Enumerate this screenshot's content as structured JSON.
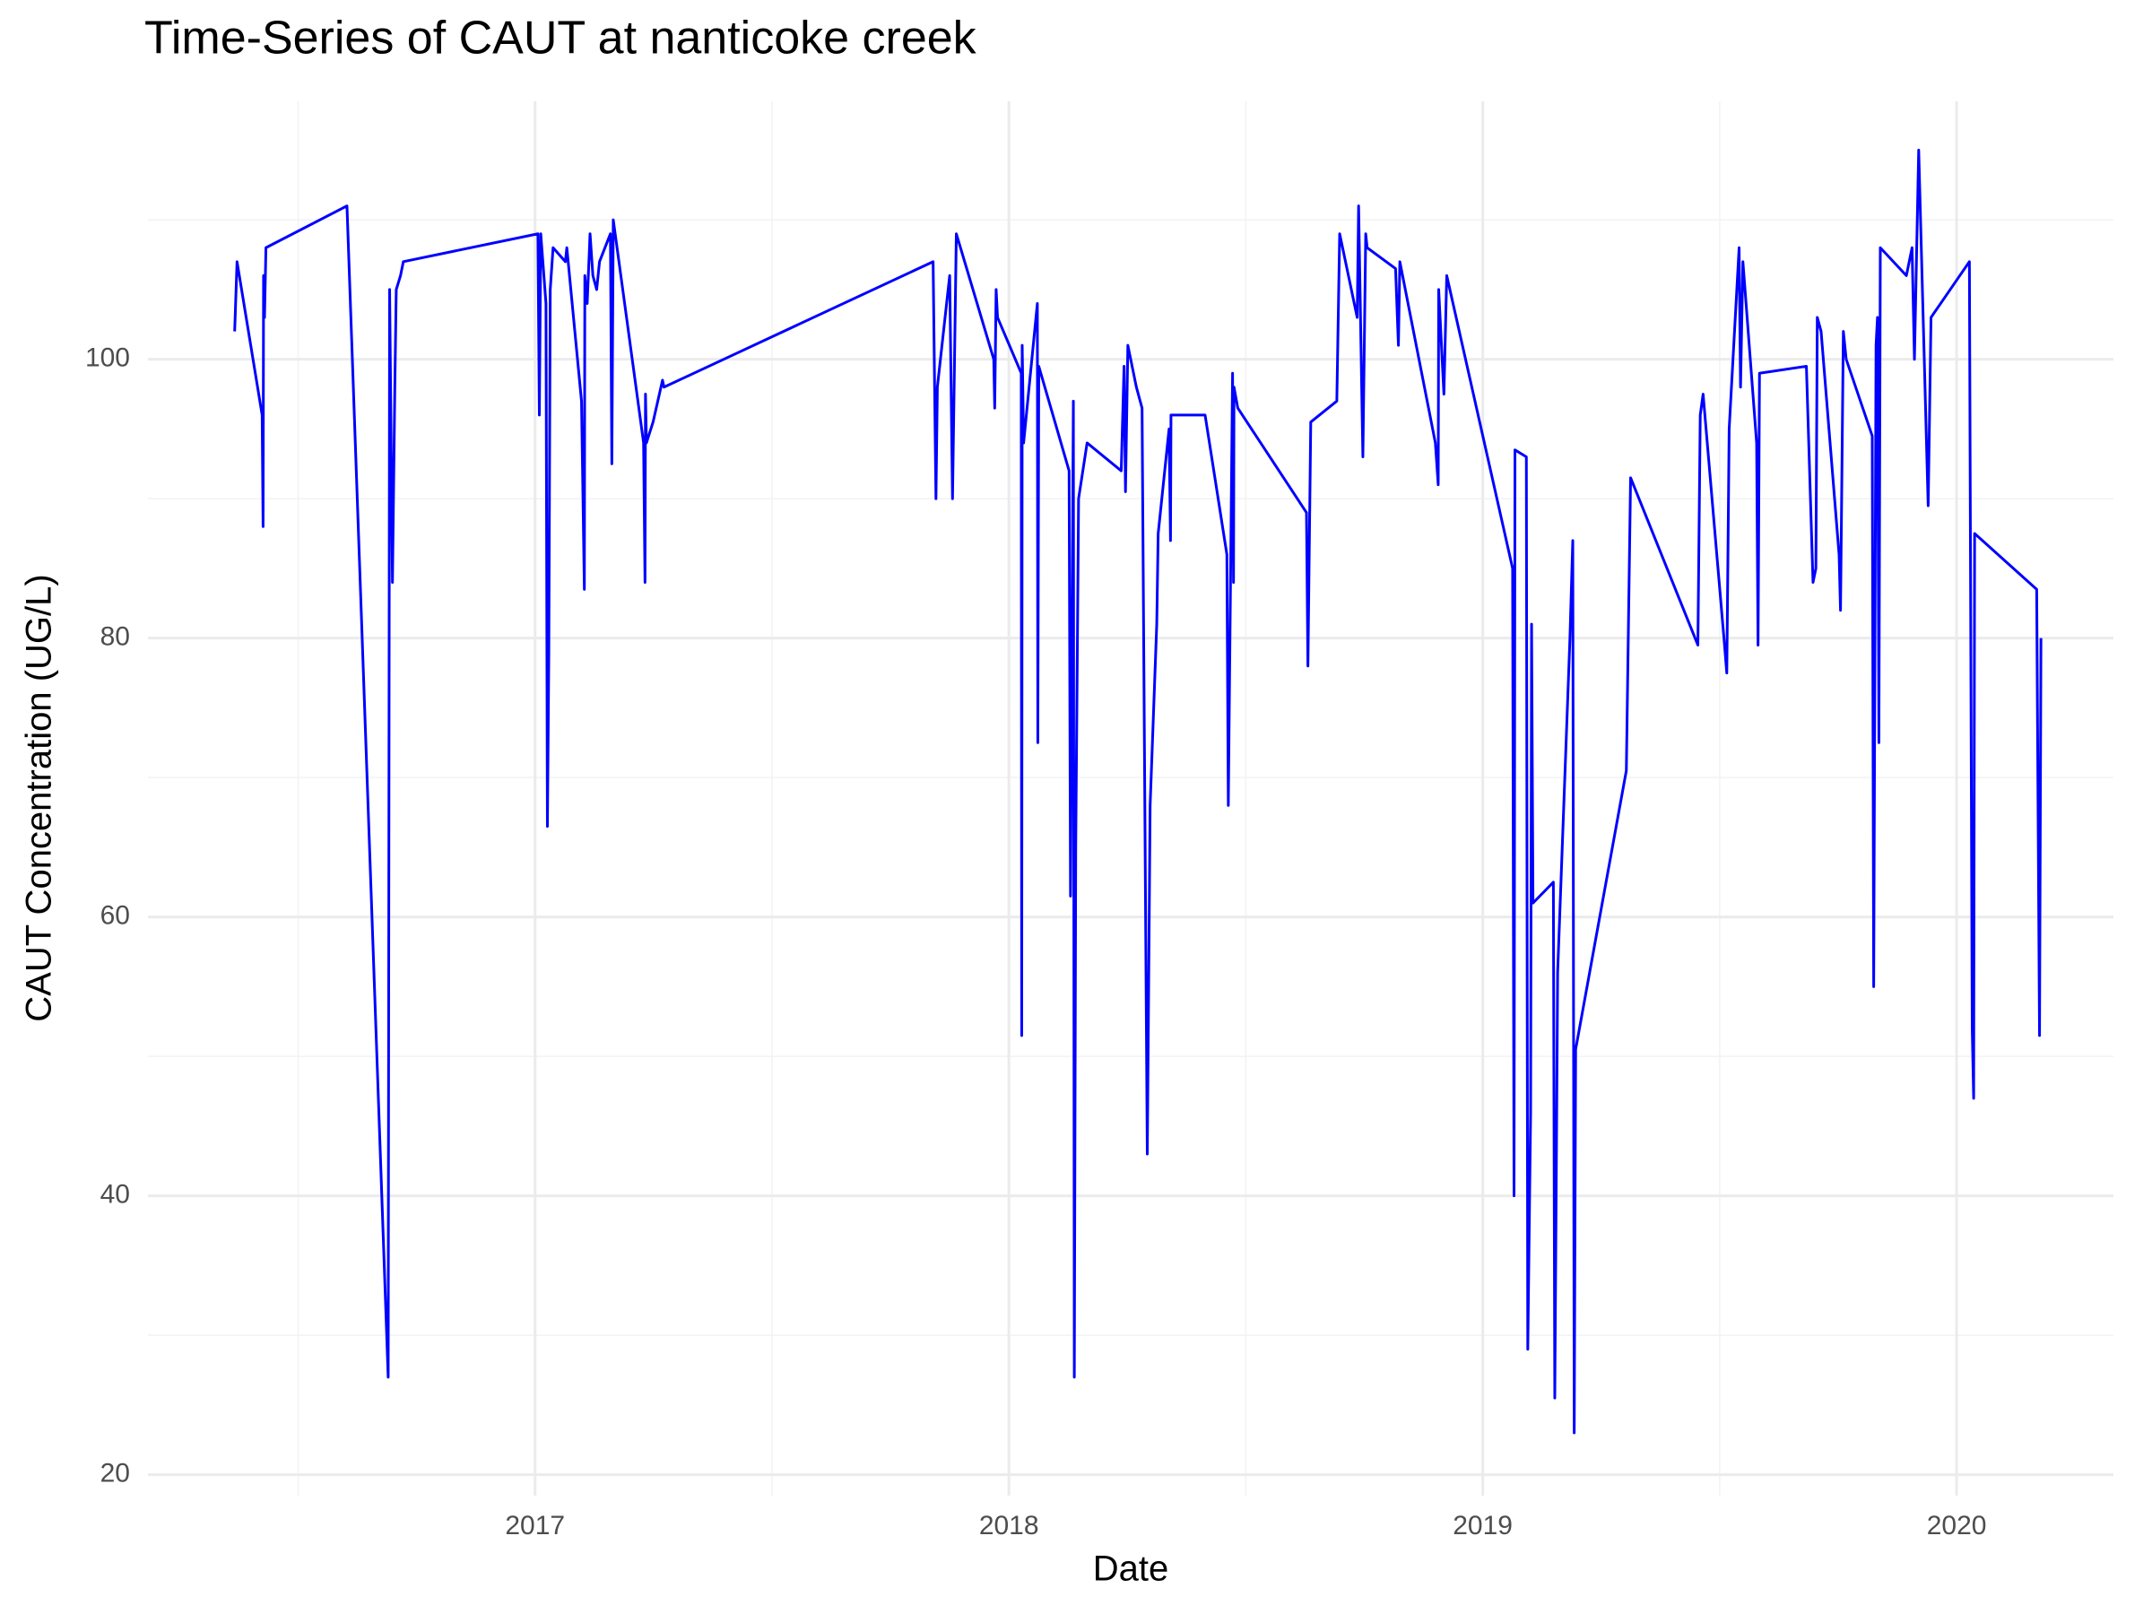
{
  "chart_data": {
    "type": "line",
    "title": "Time-Series of CAUT at nanticoke creek",
    "x_label": "Date",
    "y_label": "CAUT Concentration (UG/L)",
    "color": "#0000ff",
    "grid": true,
    "xlim": [
      2016.183,
      2020.331
    ],
    "xticks": [
      2017,
      2018,
      2019,
      2020
    ],
    "ylim": [
      18.5,
      118.5
    ],
    "yticks": [
      20,
      40,
      60,
      80,
      100
    ],
    "x": [
      2016.366,
      2016.371,
      2016.424,
      2016.426,
      2016.427,
      2016.429,
      2016.432,
      2016.603,
      2016.69,
      2016.693,
      2016.699,
      2016.704,
      2016.707,
      2016.716,
      2016.722,
      2017.006,
      2017.009,
      2017.012,
      2017.023,
      2017.026,
      2017.029,
      2017.032,
      2017.038,
      2017.064,
      2017.067,
      2017.098,
      2017.104,
      2017.105,
      2017.11,
      2017.116,
      2017.122,
      2017.13,
      2017.136,
      2017.159,
      2017.162,
      2017.165,
      2017.229,
      2017.232,
      2017.233,
      2017.235,
      2017.249,
      2017.269,
      2017.272,
      2017.84,
      2017.846,
      2017.849,
      2017.875,
      2017.881,
      2017.889,
      2017.968,
      2017.97,
      2017.973,
      2017.976,
      2018.026,
      2018.027,
      2018.028,
      2018.031,
      2018.06,
      2018.061,
      2018.063,
      2018.127,
      2018.13,
      2018.136,
      2018.138,
      2018.141,
      2018.147,
      2018.165,
      2018.237,
      2018.243,
      2018.246,
      2018.251,
      2018.269,
      2018.281,
      2018.292,
      2018.298,
      2018.312,
      2018.315,
      2018.338,
      2018.341,
      2018.342,
      2018.414,
      2018.46,
      2018.463,
      2018.472,
      2018.474,
      2018.475,
      2018.483,
      2018.628,
      2018.631,
      2018.637,
      2018.692,
      2018.698,
      2018.735,
      2018.738,
      2018.747,
      2018.753,
      2018.756,
      2018.816,
      2018.822,
      2018.825,
      2018.9,
      2018.906,
      2018.907,
      2018.918,
      2018.924,
      2019.063,
      2019.066,
      2019.068,
      2019.092,
      2019.095,
      2019.101,
      2019.103,
      2019.106,
      2019.149,
      2019.152,
      2019.158,
      2019.184,
      2019.19,
      2019.193,
      2019.196,
      2019.303,
      2019.312,
      2019.454,
      2019.459,
      2019.465,
      2019.509,
      2019.515,
      2019.52,
      2019.541,
      2019.544,
      2019.549,
      2019.578,
      2019.581,
      2019.584,
      2019.683,
      2019.697,
      2019.703,
      2019.706,
      2019.714,
      2019.752,
      2019.755,
      2019.761,
      2019.767,
      2019.822,
      2019.825,
      2019.83,
      2019.833,
      2019.836,
      2019.839,
      2019.894,
      2019.906,
      2019.911,
      2019.92,
      2019.94,
      2019.946,
      2020.027,
      2020.033,
      2020.036,
      2020.038,
      2020.169,
      2020.175,
      2020.178
    ],
    "values": [
      102,
      107,
      96,
      88,
      106,
      103,
      108,
      111,
      27,
      105,
      84,
      98,
      105,
      106,
      107,
      109,
      96,
      109,
      104,
      66.5,
      79,
      105,
      108,
      107,
      108,
      97,
      83.5,
      106,
      104,
      109,
      106,
      105,
      107,
      109,
      92.5,
      110,
      94,
      84,
      97.5,
      94,
      95.5,
      98.5,
      98,
      107,
      90,
      98,
      106,
      90,
      109,
      100,
      96.5,
      105,
      103,
      99,
      51.5,
      101,
      94,
      104,
      72.5,
      99.5,
      92,
      61.5,
      97,
      27,
      65,
      90,
      94,
      92,
      99.5,
      90.5,
      101,
      98,
      96.5,
      43,
      68,
      81,
      87.5,
      95,
      87,
      96,
      96,
      86,
      68,
      99,
      84,
      98,
      96.5,
      89,
      78,
      95.5,
      97,
      109,
      103,
      111,
      93,
      109,
      108,
      106.5,
      101,
      107,
      94,
      91,
      105,
      97.5,
      106,
      85,
      40,
      93.5,
      93,
      29,
      46,
      81,
      61,
      62.5,
      25.5,
      56,
      80,
      87,
      23,
      50.5,
      70.5,
      91.5,
      79.5,
      96,
      97.5,
      80,
      77.5,
      95,
      108,
      98,
      107,
      94,
      79.5,
      99,
      99.5,
      84,
      85,
      103,
      102,
      86,
      82,
      102,
      100,
      94.5,
      55,
      101,
      103,
      72.5,
      108,
      106,
      108,
      100,
      115,
      89.5,
      103,
      107,
      52,
      47,
      87.5,
      83.5,
      51.5,
      80
    ]
  }
}
